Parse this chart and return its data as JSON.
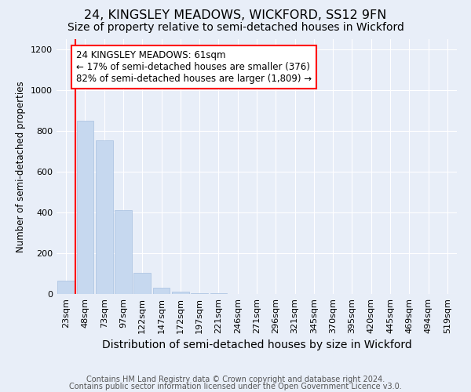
{
  "title": "24, KINGSLEY MEADOWS, WICKFORD, SS12 9FN",
  "subtitle": "Size of property relative to semi-detached houses in Wickford",
  "xlabel": "Distribution of semi-detached houses by size in Wickford",
  "ylabel": "Number of semi-detached properties",
  "bar_labels": [
    "23sqm",
    "48sqm",
    "73sqm",
    "97sqm",
    "122sqm",
    "147sqm",
    "172sqm",
    "197sqm",
    "221sqm",
    "246sqm",
    "271sqm",
    "296sqm",
    "321sqm",
    "345sqm",
    "370sqm",
    "395sqm",
    "420sqm",
    "445sqm",
    "469sqm",
    "494sqm",
    "519sqm"
  ],
  "bar_values": [
    65,
    850,
    755,
    410,
    105,
    30,
    10,
    5,
    2,
    1,
    0,
    0,
    0,
    0,
    0,
    0,
    0,
    0,
    0,
    0,
    0
  ],
  "bar_color": "#c6d8ef",
  "bar_edge_color": "#a8c0e0",
  "annotation_line1": "24 KINGSLEY MEADOWS: 61sqm",
  "annotation_line2": "← 17% of semi-detached houses are smaller (376)",
  "annotation_line3": "82% of semi-detached houses are larger (1,809) →",
  "ylim": [
    0,
    1250
  ],
  "yticks": [
    0,
    200,
    400,
    600,
    800,
    1000,
    1200
  ],
  "footer1": "Contains HM Land Registry data © Crown copyright and database right 2024.",
  "footer2": "Contains public sector information licensed under the Open Government Licence v3.0.",
  "background_color": "#e8eef8",
  "grid_color": "#ffffff",
  "title_fontsize": 11.5,
  "subtitle_fontsize": 10,
  "xlabel_fontsize": 10,
  "ylabel_fontsize": 8.5,
  "tick_fontsize": 8,
  "annotation_fontsize": 8.5,
  "footer_fontsize": 7
}
